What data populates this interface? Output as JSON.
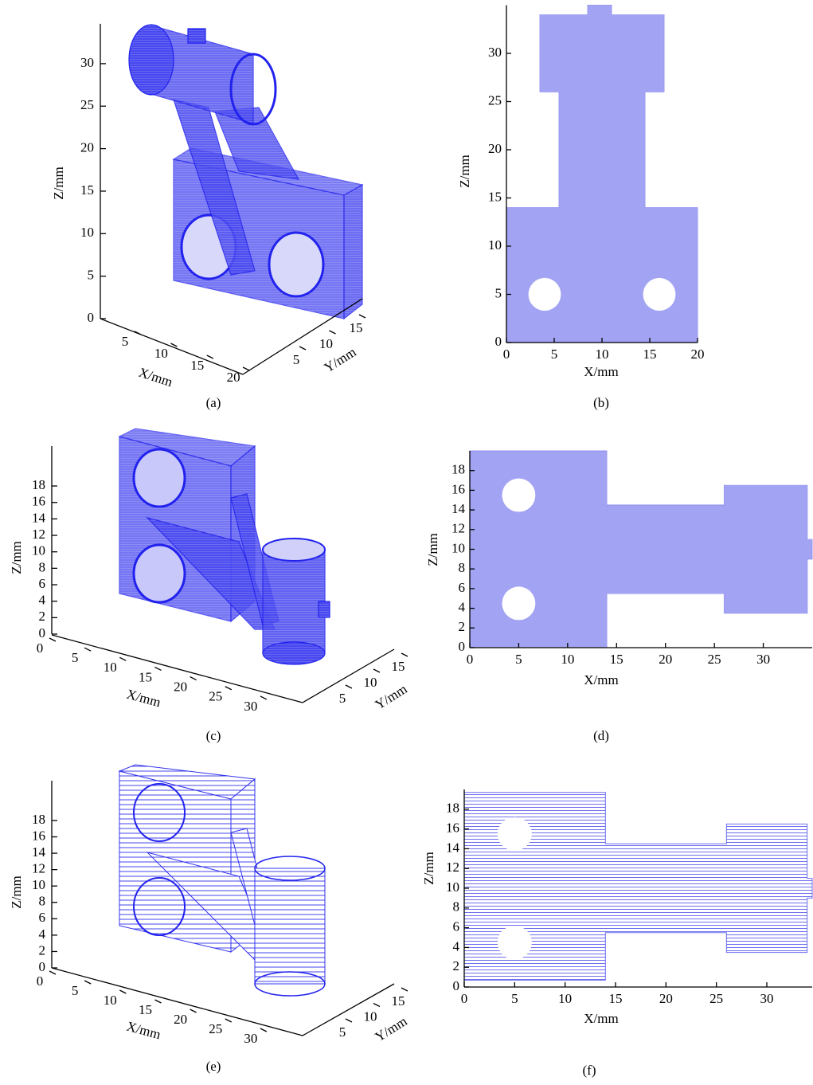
{
  "panels": [
    {
      "kind": "3d",
      "caption": "(a)",
      "xlabel": "X/mm",
      "ylabel": "Y/mm",
      "zlabel": "Z/mm",
      "xticks": [
        5,
        10,
        15,
        20
      ],
      "yticks": [
        5,
        10,
        15
      ],
      "zticks": [
        0,
        5,
        10,
        15,
        20,
        25,
        30
      ]
    },
    {
      "kind": "2d",
      "caption": "(b)",
      "xlabel": "X/mm",
      "ylabel": "Z/mm",
      "color": "#9a9af2",
      "xlim": [
        0,
        20
      ],
      "ylim": [
        0,
        35
      ],
      "xticks": [
        0,
        5,
        10,
        15,
        20
      ],
      "yticks": [
        0,
        5,
        10,
        15,
        20,
        25,
        30
      ],
      "outline": [
        [
          0,
          0
        ],
        [
          20,
          0
        ],
        [
          20,
          14
        ],
        [
          14.5,
          14
        ],
        [
          14.5,
          26
        ],
        [
          16.5,
          26
        ],
        [
          16.5,
          34
        ],
        [
          11,
          34
        ],
        [
          11,
          35
        ],
        [
          8.5,
          35
        ],
        [
          8.5,
          34
        ],
        [
          3.5,
          34
        ],
        [
          3.5,
          26
        ],
        [
          5.5,
          26
        ],
        [
          5.5,
          14
        ],
        [
          0,
          14
        ]
      ],
      "holes": [
        [
          4,
          5,
          1.7
        ],
        [
          16,
          5,
          1.7
        ]
      ]
    },
    {
      "kind": "3d",
      "caption": "(c)",
      "xlabel": "X/mm",
      "ylabel": "Y/mm",
      "zlabel": "Z/mm",
      "xticks": [
        0,
        5,
        10,
        15,
        20,
        25,
        30
      ],
      "yticks": [
        5,
        10,
        15
      ],
      "zticks": [
        0,
        2,
        4,
        6,
        8,
        10,
        12,
        14,
        16,
        18
      ]
    },
    {
      "kind": "2d",
      "caption": "(d)",
      "xlabel": "X/mm",
      "ylabel": "Z/mm",
      "color": "#9a9af2",
      "xlim": [
        0,
        35
      ],
      "ylim": [
        0,
        20
      ],
      "xticks": [
        0,
        5,
        10,
        15,
        20,
        25,
        30
      ],
      "yticks": [
        0,
        2,
        4,
        6,
        8,
        10,
        12,
        14,
        16,
        18
      ],
      "outline": [
        [
          0,
          0
        ],
        [
          14,
          0
        ],
        [
          14,
          5.5
        ],
        [
          26,
          5.5
        ],
        [
          26,
          3.5
        ],
        [
          34.5,
          3.5
        ],
        [
          34.5,
          9
        ],
        [
          35,
          9
        ],
        [
          35,
          11
        ],
        [
          34.5,
          11
        ],
        [
          34.5,
          16.5
        ],
        [
          26,
          16.5
        ],
        [
          26,
          14.5
        ],
        [
          14,
          14.5
        ],
        [
          14,
          20
        ],
        [
          0,
          20
        ]
      ],
      "holes": [
        [
          5,
          15.5,
          1.7
        ],
        [
          5,
          4.5,
          1.7
        ]
      ]
    },
    {
      "kind": "3d",
      "caption": "(e)",
      "xlabel": "X/mm",
      "ylabel": "Y/mm",
      "zlabel": "Z/mm",
      "xticks": [
        0,
        5,
        10,
        15,
        20,
        25,
        30
      ],
      "yticks": [
        5,
        10,
        15
      ],
      "zticks": [
        0,
        2,
        4,
        6,
        8,
        10,
        12,
        14,
        16,
        18
      ]
    },
    {
      "kind": "2d",
      "caption": "(f)",
      "xlabel": "X/mm",
      "ylabel": "Z/mm",
      "color": "#6e6ef0",
      "xlim": [
        0,
        34.5
      ],
      "ylim": [
        0,
        20
      ],
      "xticks": [
        0,
        5,
        10,
        15,
        20,
        25,
        30
      ],
      "yticks": [
        0,
        2,
        4,
        6,
        8,
        10,
        12,
        14,
        16,
        18
      ],
      "outline": [
        [
          0,
          0.7
        ],
        [
          14,
          0.7
        ],
        [
          14,
          5.5
        ],
        [
          26,
          5.5
        ],
        [
          26,
          3.5
        ],
        [
          34,
          3.5
        ],
        [
          34,
          9
        ],
        [
          34.5,
          9
        ],
        [
          34.5,
          11
        ],
        [
          34,
          11
        ],
        [
          34,
          16.5
        ],
        [
          26,
          16.5
        ],
        [
          26,
          14.5
        ],
        [
          14,
          14.5
        ],
        [
          14,
          19.7
        ],
        [
          0,
          19.7
        ]
      ],
      "holes": [
        [
          5,
          15.5,
          1.7
        ],
        [
          5,
          4.5,
          1.7
        ]
      ]
    }
  ]
}
